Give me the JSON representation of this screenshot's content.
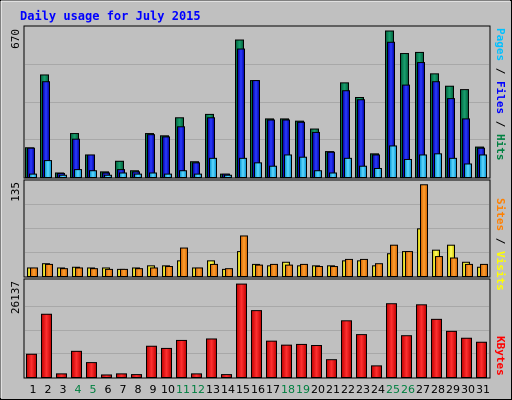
{
  "title": "Daily usage for July 2015",
  "colors": {
    "background": "#c0c0c0",
    "panel": "#c0c0c0",
    "title": "#0000ff",
    "hits": "#008040",
    "files": "#0000ff",
    "pages": "#00c0ff",
    "visits": "#ffff00",
    "sites": "#ff8000",
    "kbytes": "#ff0000",
    "weekend_day": "#008040",
    "weekday": "#000000"
  },
  "chart_data": [
    {
      "type": "bar",
      "title": "Daily usage for July 2015",
      "categories": [
        "1",
        "2",
        "3",
        "4",
        "5",
        "6",
        "7",
        "8",
        "9",
        "10",
        "11",
        "12",
        "13",
        "14",
        "15",
        "16",
        "17",
        "18",
        "19",
        "20",
        "21",
        "22",
        "23",
        "24",
        "25",
        "26",
        "27",
        "28",
        "29",
        "30",
        "31"
      ],
      "weekend_days": [
        "4",
        "5",
        "11",
        "12",
        "18",
        "19",
        "25",
        "26"
      ],
      "ylabel_max": "670",
      "ylim": [
        0,
        670
      ],
      "series": [
        {
          "name": "Hits",
          "values": [
            132,
            455,
            20,
            195,
            100,
            25,
            72,
            30,
            195,
            185,
            265,
            70,
            280,
            15,
            610,
            430,
            260,
            260,
            250,
            215,
            115,
            420,
            355,
            105,
            650,
            550,
            555,
            460,
            405,
            390,
            135
          ]
        },
        {
          "name": "Files",
          "values": [
            130,
            425,
            18,
            170,
            100,
            20,
            35,
            25,
            190,
            180,
            225,
            65,
            265,
            15,
            570,
            430,
            255,
            255,
            245,
            200,
            112,
            385,
            345,
            100,
            600,
            410,
            510,
            425,
            350,
            260,
            130
          ]
        },
        {
          "name": "Pages",
          "values": [
            15,
            75,
            10,
            35,
            30,
            10,
            20,
            15,
            20,
            15,
            30,
            15,
            85,
            10,
            85,
            65,
            50,
            100,
            90,
            30,
            20,
            85,
            50,
            40,
            140,
            80,
            100,
            105,
            85,
            60,
            100
          ]
        }
      ]
    },
    {
      "type": "bar",
      "categories": [
        "1",
        "2",
        "3",
        "4",
        "5",
        "6",
        "7",
        "8",
        "9",
        "10",
        "11",
        "12",
        "13",
        "14",
        "15",
        "16",
        "17",
        "18",
        "19",
        "20",
        "21",
        "22",
        "23",
        "24",
        "25",
        "26",
        "27",
        "28",
        "29",
        "30",
        "31"
      ],
      "ylabel_max": "135",
      "ylim": [
        0,
        135
      ],
      "series": [
        {
          "name": "Visits",
          "values": [
            12,
            18,
            12,
            13,
            12,
            12,
            10,
            12,
            15,
            15,
            22,
            12,
            22,
            10,
            35,
            17,
            15,
            20,
            15,
            15,
            15,
            22,
            22,
            15,
            32,
            35,
            67,
            37,
            44,
            20,
            13
          ]
        },
        {
          "name": "Sites",
          "values": [
            12,
            17,
            11,
            12,
            11,
            10,
            10,
            11,
            12,
            14,
            40,
            12,
            17,
            11,
            57,
            16,
            17,
            16,
            17,
            14,
            14,
            24,
            24,
            18,
            44,
            35,
            129,
            28,
            26,
            17,
            17
          ]
        }
      ]
    },
    {
      "type": "bar",
      "categories": [
        "1",
        "2",
        "3",
        "4",
        "5",
        "6",
        "7",
        "8",
        "9",
        "10",
        "11",
        "12",
        "13",
        "14",
        "15",
        "16",
        "17",
        "18",
        "19",
        "20",
        "21",
        "22",
        "23",
        "24",
        "25",
        "26",
        "27",
        "28",
        "29",
        "30",
        "31"
      ],
      "ylabel_max": "26137",
      "ylim": [
        0,
        26137
      ],
      "series": [
        {
          "name": "KBytes",
          "values": [
            6400,
            17400,
            1000,
            7200,
            4100,
            700,
            1000,
            800,
            8600,
            8000,
            10200,
            1000,
            10600,
            800,
            25700,
            18400,
            10000,
            8900,
            9100,
            8800,
            4900,
            15600,
            11800,
            3200,
            20300,
            11500,
            20000,
            16000,
            12700,
            10800,
            9700
          ]
        }
      ]
    }
  ],
  "right_labels": {
    "top": [
      {
        "text": "Pages",
        "color": "#00c0ff"
      },
      {
        "text": " / ",
        "color": "#000000"
      },
      {
        "text": "Files",
        "color": "#0000ff"
      },
      {
        "text": " / ",
        "color": "#000000"
      },
      {
        "text": "Hits",
        "color": "#008040"
      }
    ],
    "middle": [
      {
        "text": "Sites",
        "color": "#ff8000"
      },
      {
        "text": " / ",
        "color": "#000000"
      },
      {
        "text": "Visits",
        "color": "#ffff00"
      }
    ],
    "bottom": [
      {
        "text": "KBytes",
        "color": "#ff0000"
      }
    ]
  }
}
